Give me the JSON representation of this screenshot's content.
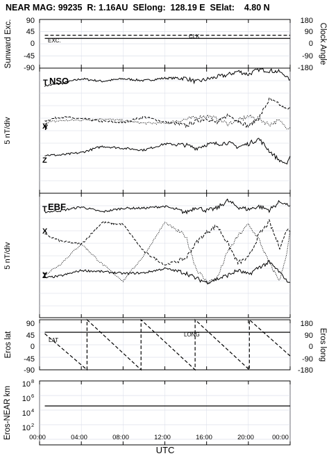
{
  "header": {
    "title": "NEAR MAG: 99235  R: 1.16AU  SElong:  128.19 E  SElat:    4.80 N"
  },
  "x_axis": {
    "label": "UTC",
    "ticks": [
      "00:00",
      "04:00",
      "08:00",
      "12:00",
      "16:00",
      "20:00",
      "00:00"
    ]
  },
  "panels": {
    "p1": {
      "ylabel_left": "Sunward Exc.",
      "ylabel_right": "Clock Angle",
      "ticks_left": [
        "90",
        "45",
        "0",
        "-45",
        "-90"
      ],
      "ticks_right": [
        "180",
        "90",
        "0",
        "-90",
        "-180"
      ],
      "label_exc": "EXC.",
      "label_clk": "CLK"
    },
    "p2": {
      "ylabel_left": "5 nT/div",
      "tag": "NSO",
      "t": "T",
      "x": "X",
      "y": "Y",
      "z": "Z"
    },
    "p3": {
      "ylabel_left": "5 nT/div",
      "tag": "EBF",
      "t": "T",
      "x": "X",
      "y": "Y",
      "z": "Z"
    },
    "p4": {
      "ylabel_left": "Eros lat",
      "ylabel_right": "Eros long",
      "ticks_left": [
        "90",
        "45",
        "0",
        "-45",
        "-90"
      ],
      "ticks_right": [
        "180",
        "90",
        "0",
        "-90",
        "-180"
      ],
      "label_lat": "LAT",
      "label_long": "LONG"
    },
    "p5": {
      "ylabel_left": "Eros-NEAR km",
      "ticks_left": [
        "10",
        "10",
        "10",
        "10"
      ],
      "ticks_exp": [
        "8",
        "6",
        "4",
        "2"
      ]
    }
  },
  "chart_data": [
    {
      "type": "line",
      "panel": "p1",
      "ylabel": "Sunward Exc.",
      "ylim": [
        -90,
        90
      ],
      "y2label": "Clock Angle",
      "y2lim": [
        -180,
        180
      ],
      "series": [
        {
          "name": "EXC.",
          "x": [
            0.5,
            24
          ],
          "y": [
            20,
            20
          ]
        },
        {
          "name": "CLK",
          "x": [
            0.5,
            24
          ],
          "y2": [
            63,
            63
          ]
        }
      ]
    },
    {
      "type": "line",
      "panel": "p2",
      "tag": "NSO",
      "ylabel": "5 nT/div",
      "series": [
        {
          "name": "T",
          "x": [
            0.5,
            2,
            4,
            6,
            8,
            10,
            12,
            14,
            15,
            16,
            17,
            18,
            19,
            20,
            21,
            22,
            23,
            23.7,
            24
          ],
          "y": [
            7.2,
            7.5,
            8.3,
            7.9,
            8.3,
            8.0,
            8.4,
            8.4,
            7.8,
            8.2,
            8.6,
            8.9,
            9.5,
            9.0,
            9.8,
            9.6,
            9.4,
            8.6,
            8.0
          ]
        },
        {
          "name": "X",
          "x": [
            0.5,
            2,
            4,
            6,
            8,
            10,
            12,
            14,
            15,
            16,
            17,
            18,
            19,
            20,
            21,
            22,
            23,
            23.7,
            24
          ],
          "y": [
            1.6,
            2.2,
            1.9,
            1.5,
            1.3,
            2.2,
            1.4,
            0.8,
            1.5,
            2.0,
            1.2,
            2.5,
            1.7,
            0.7,
            2.0,
            5.0,
            4.1,
            3.4,
            3.6
          ]
        },
        {
          "name": "Y",
          "x": [
            0.5,
            2,
            4,
            6,
            8,
            10,
            12,
            14,
            15,
            16,
            17,
            18,
            19,
            20,
            21,
            22,
            23,
            23.7,
            24
          ],
          "y": [
            1.3,
            1.6,
            1.7,
            1.9,
            1.6,
            1.2,
            1.2,
            1.8,
            2.1,
            2.4,
            1.9,
            1.1,
            1.6,
            2.3,
            1.9,
            1.0,
            1.6,
            0.4,
            0.5
          ]
        },
        {
          "name": "Z",
          "x": [
            0.5,
            2,
            4,
            6,
            8,
            10,
            12,
            14,
            15,
            16,
            17,
            18,
            19,
            20,
            21,
            22,
            23,
            23.7,
            24
          ],
          "y": [
            -3.9,
            -3.9,
            -3.5,
            -2.5,
            -2.8,
            -3.1,
            -2.1,
            -2.3,
            -2.8,
            -2.2,
            -2.1,
            -1.9,
            -2.6,
            -2.1,
            -1.3,
            -3.2,
            -4.8,
            -5.3,
            -4.2
          ]
        }
      ]
    },
    {
      "type": "line",
      "panel": "p3",
      "tag": "EBF",
      "ylabel": "5 nT/div",
      "series": [
        {
          "name": "T",
          "x": [
            0.5,
            2,
            4,
            6,
            8,
            10,
            12,
            14,
            15,
            16,
            17,
            18,
            19,
            20,
            21,
            22,
            23,
            23.7,
            24
          ],
          "y": [
            7.0,
            7.2,
            7.8,
            7.0,
            7.6,
            7.6,
            7.9,
            6.9,
            7.8,
            7.2,
            7.6,
            8.8,
            7.8,
            7.4,
            7.9,
            7.3,
            8.6,
            8.2,
            7.9
          ]
        },
        {
          "name": "X",
          "x": [
            0.5,
            2,
            4,
            6,
            8,
            10,
            12,
            14,
            15,
            16,
            17,
            18,
            19,
            20,
            21,
            22,
            23,
            23.7,
            24
          ],
          "y": [
            3.4,
            2.3,
            1.8,
            5.3,
            5.0,
            0.6,
            -1.5,
            -0.5,
            2.1,
            3.7,
            4.8,
            2.0,
            -1.2,
            -0.4,
            3.3,
            5.4,
            1.2,
            4.2,
            4.0
          ]
        },
        {
          "name": "Y",
          "x": [
            0.5,
            2,
            4,
            6,
            8,
            10,
            12,
            14,
            15,
            16,
            17,
            18,
            19,
            20,
            21,
            22,
            23,
            23.7,
            24
          ],
          "y": [
            -3.1,
            -1.4,
            1.9,
            -1.4,
            -4.1,
            0.0,
            5.3,
            3.1,
            -2.1,
            -4.3,
            -3.7,
            0.5,
            3.1,
            5.0,
            2.6,
            -1.3,
            -4.0,
            0.5,
            4.0
          ]
        },
        {
          "name": "Z",
          "x": [
            0.5,
            2,
            4,
            6,
            8,
            10,
            12,
            14,
            15,
            16,
            17,
            18,
            19,
            20,
            21,
            22,
            23,
            23.7,
            24
          ],
          "y": [
            -3.6,
            -3.3,
            -2.4,
            -2.6,
            -2.9,
            -2.8,
            -2.1,
            -2.8,
            -3.7,
            -4.3,
            -3.8,
            -3.2,
            -2.4,
            -3.1,
            -1.9,
            -1.1,
            -2.7,
            -4.1,
            -4.5
          ]
        }
      ]
    },
    {
      "type": "line",
      "panel": "p4",
      "ylabel": "Eros lat",
      "ylim": [
        -90,
        90
      ],
      "y2label": "Eros long",
      "y2lim": [
        -180,
        180
      ],
      "series": [
        {
          "name": "LAT",
          "x": [
            0.5,
            24
          ],
          "y": [
            45,
            45
          ]
        },
        {
          "name": "LONG",
          "x": [
            0.5,
            4.55,
            4.55,
            9.72,
            9.72,
            14.9,
            14.9,
            20.1,
            20.1,
            24
          ],
          "y2": [
            80,
            -180,
            180,
            -180,
            180,
            -180,
            180,
            -180,
            180,
            -80
          ]
        }
      ]
    },
    {
      "type": "line",
      "panel": "p5",
      "ylabel": "Eros-NEAR km",
      "yscale": "log",
      "ylim": [
        10,
        1000000000
      ],
      "series": [
        {
          "name": "Eros-NEAR distance",
          "x": [
            0.5,
            24
          ],
          "y": [
            300000,
            300000
          ]
        }
      ]
    }
  ]
}
